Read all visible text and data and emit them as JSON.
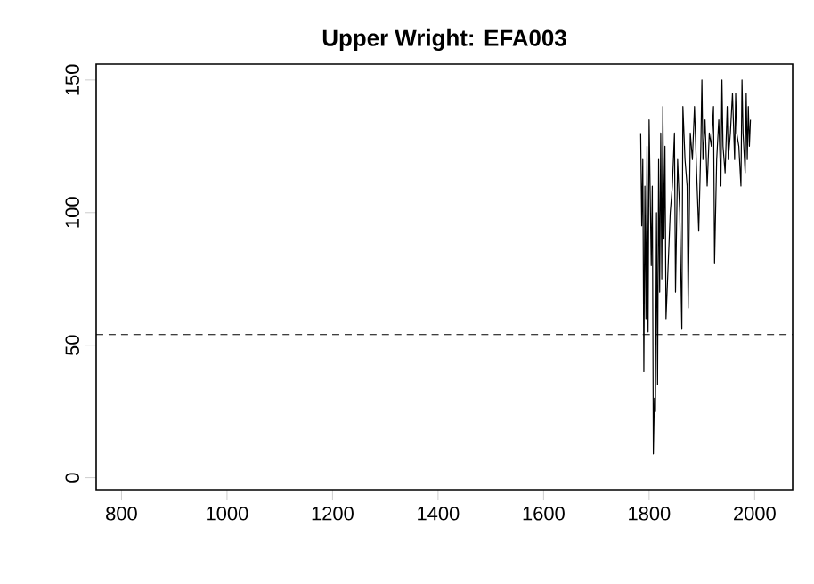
{
  "chart_data": {
    "type": "line",
    "title": "Upper Wright:  EFA003",
    "x": [
      1784,
      1786,
      1788,
      1790,
      1792,
      1794,
      1796,
      1798,
      1800,
      1802,
      1804,
      1806,
      1808,
      1810,
      1812,
      1814,
      1816,
      1818,
      1820,
      1822,
      1824,
      1826,
      1828,
      1830,
      1832,
      1834,
      1836,
      1838,
      1840,
      1842,
      1844,
      1846,
      1848,
      1850,
      1852,
      1854,
      1856,
      1858,
      1860,
      1862,
      1864,
      1866,
      1868,
      1870,
      1872,
      1874,
      1876,
      1878,
      1880,
      1882,
      1884,
      1886,
      1888,
      1890,
      1892,
      1894,
      1896,
      1898,
      1900,
      1902,
      1904,
      1906,
      1908,
      1910,
      1912,
      1914,
      1916,
      1918,
      1920,
      1922,
      1924,
      1926,
      1928,
      1930,
      1932,
      1934,
      1936,
      1938,
      1940,
      1942,
      1944,
      1946,
      1948,
      1950,
      1952,
      1954,
      1956,
      1958,
      1960,
      1962,
      1964,
      1966,
      1968,
      1970,
      1972,
      1974,
      1976,
      1978,
      1980,
      1982,
      1984,
      1986,
      1988,
      1990,
      1992
    ],
    "values": [
      130,
      95,
      120,
      40,
      110,
      60,
      125,
      55,
      135,
      null,
      80,
      110,
      9,
      30,
      25,
      100,
      35,
      120,
      70,
      130,
      75,
      140,
      90,
      125,
      60,
      null,
      80,
      null,
      100,
      null,
      110,
      null,
      130,
      70,
      null,
      120,
      null,
      100,
      null,
      56,
      140,
      null,
      120,
      null,
      110,
      64,
      null,
      130,
      null,
      120,
      null,
      140,
      null,
      115,
      null,
      93,
      null,
      125,
      150,
      120,
      null,
      135,
      null,
      110,
      null,
      130,
      null,
      125,
      null,
      140,
      81,
      null,
      120,
      null,
      135,
      null,
      110,
      150,
      125,
      null,
      115,
      null,
      140,
      120,
      null,
      130,
      null,
      145,
      null,
      120,
      145,
      130,
      null,
      125,
      null,
      110,
      150,
      130,
      null,
      115,
      145,
      120,
      140,
      125,
      135
    ],
    "color": "#000000",
    "line_style": "solid",
    "xlim": [
      752,
      2072
    ],
    "ylim": [
      -4.5,
      156
    ],
    "xticks": [
      800,
      1000,
      1200,
      1400,
      1600,
      1800,
      2000
    ],
    "yticks": [
      0,
      50,
      100,
      150
    ],
    "ref_lines": [
      {
        "axis": "y",
        "value": 54,
        "line_style": "dashed",
        "color": "#000000"
      }
    ]
  }
}
